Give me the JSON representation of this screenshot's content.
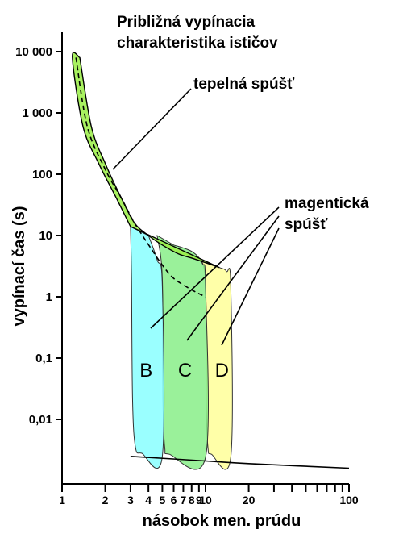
{
  "chart_data": {
    "type": "area",
    "title_lines": [
      "Približná vypínacia",
      "charakteristika ističov"
    ],
    "xlabel": "násobok men. prúdu",
    "ylabel": "vypínací čas (s)",
    "x_scale": "log",
    "y_scale": "log",
    "xlim": [
      1,
      100
    ],
    "ylim": [
      0.001,
      10000
    ],
    "x_tick_labels": [
      {
        "value": 1,
        "label": "1"
      },
      {
        "value": 2,
        "label": "2"
      },
      {
        "value": 3,
        "label": "3"
      },
      {
        "value": 4,
        "label": "4"
      },
      {
        "value": 5,
        "label": "5"
      },
      {
        "value": 6,
        "label": "6"
      },
      {
        "value": 7,
        "label": "7"
      },
      {
        "value": 8,
        "label": "8"
      },
      {
        "value": 9,
        "label": "9"
      },
      {
        "value": 10,
        "label": "10"
      },
      {
        "value": 20,
        "label": "20"
      },
      {
        "value": 100,
        "label": "100"
      }
    ],
    "x_minor_ticks": [
      30,
      40,
      50,
      60,
      70,
      80,
      90
    ],
    "y_tick_labels": [
      {
        "value": 10000,
        "label": "10 000"
      },
      {
        "value": 1000,
        "label": "1 000"
      },
      {
        "value": 100,
        "label": "100"
      },
      {
        "value": 10,
        "label": "10"
      },
      {
        "value": 1,
        "label": "1"
      },
      {
        "value": 0.1,
        "label": "0,1"
      },
      {
        "value": 0.01,
        "label": "0,01"
      }
    ],
    "thermal_release": {
      "label": "tepelná spúšť",
      "color": "#99ee44",
      "upper_curve": [
        [
          1.33,
          8000
        ],
        [
          1.6,
          600
        ],
        [
          2.0,
          150
        ],
        [
          2.6,
          40
        ],
        [
          3.2,
          16
        ],
        [
          4.0,
          10
        ],
        [
          5.0,
          7
        ],
        [
          6.5,
          5
        ],
        [
          8.0,
          4.3
        ],
        [
          10.0,
          3.6
        ],
        [
          12.5,
          3.0
        ]
      ],
      "lower_curve": [
        [
          1.18,
          8000
        ],
        [
          1.4,
          600
        ],
        [
          1.8,
          150
        ],
        [
          2.4,
          40
        ],
        [
          3.0,
          14
        ]
      ],
      "mid_dashed": [
        [
          1.25,
          8000
        ],
        [
          1.5,
          600
        ],
        [
          2.0,
          120
        ],
        [
          2.6,
          40
        ],
        [
          3.2,
          16
        ],
        [
          4.2,
          6
        ],
        [
          5.0,
          3.3
        ],
        [
          6.0,
          2.0
        ],
        [
          8.0,
          1.3
        ],
        [
          10.0,
          1.0
        ]
      ]
    },
    "magnetic_release": {
      "label_lines": [
        "magentická",
        "spúšť"
      ],
      "regions": [
        {
          "name": "B",
          "color": "#88ffff",
          "x_range": [
            3,
            5
          ]
        },
        {
          "name": "C",
          "color": "#88ee88",
          "x_range": [
            5,
            10
          ]
        },
        {
          "name": "D",
          "color": "#ffff99",
          "x_range": [
            10,
            20
          ]
        }
      ]
    },
    "tail_curve": [
      [
        3.0,
        0.0025
      ],
      [
        10.0,
        0.0021
      ],
      [
        20.0,
        0.0019
      ],
      [
        100.0,
        0.0016
      ]
    ]
  }
}
